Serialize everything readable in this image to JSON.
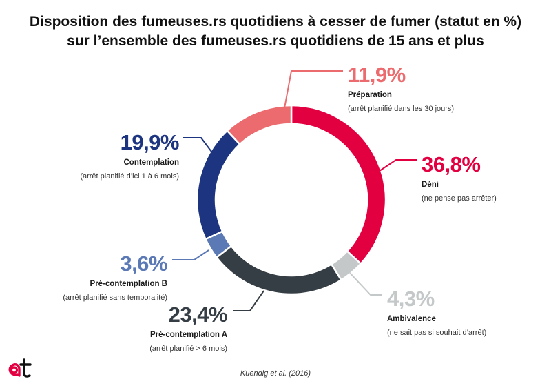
{
  "title": {
    "line1": "Disposition des fumeuses.rs quotidiens à cesser de fumer (statut en %)",
    "line2": "sur l’ensemble des fumeuses.rs quotidiens de 15 ans et plus"
  },
  "source": "Kuendig et al. (2016)",
  "logo": {
    "icon": "at-logo-icon",
    "color": "#e30041"
  },
  "chart_data": {
    "type": "pie",
    "variant": "donut",
    "unit": "%",
    "slices": [
      {
        "key": "deni",
        "pct_label": "36,8%",
        "value": 36.8,
        "name": "Déni",
        "desc": "(ne pense pas arrêter)",
        "color": "#e30041",
        "label_color": "#e30041"
      },
      {
        "key": "ambivalence",
        "pct_label": "4,3%",
        "value": 4.3,
        "name": "Ambivalence",
        "desc": "(ne sait pas si souhait d’arrêt)",
        "color": "#c4c8c9",
        "label_color": "#c4c8c9"
      },
      {
        "key": "precontemplation-a",
        "pct_label": "23,4%",
        "value": 23.4,
        "name": "Pré-contemplation A",
        "desc": "(arrêt planifié > 6 mois)",
        "color": "#363e45",
        "label_color": "#363e45"
      },
      {
        "key": "precontemplation-b",
        "pct_label": "3,6%",
        "value": 3.6,
        "name": "Pré-contemplation B",
        "desc": "(arrêt planifié sans temporalité)",
        "color": "#5a79b5",
        "label_color": "#5a79b5"
      },
      {
        "key": "contemplation",
        "pct_label": "19,9%",
        "value": 19.9,
        "name": "Contemplation",
        "desc": "(arrêt planifié d’ici 1 à 6 mois)",
        "color": "#1d3580",
        "label_color": "#1d3580"
      },
      {
        "key": "preparation",
        "pct_label": "11,9%",
        "value": 11.9,
        "name": "Préparation",
        "desc": "(arrêt planifié dans les 30 jours)",
        "color": "#ec6b6e",
        "label_color": "#ec6b6e"
      }
    ]
  }
}
